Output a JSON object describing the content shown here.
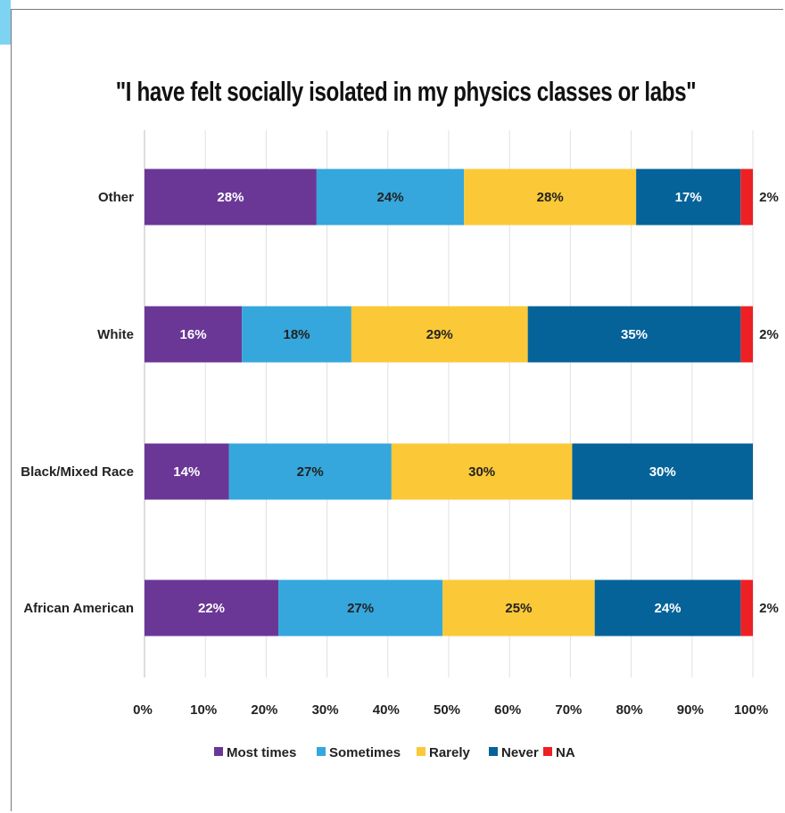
{
  "chart_data": {
    "type": "bar",
    "orientation": "horizontal",
    "stacked": true,
    "title": "\"I have felt socially isolated in my physics classes or labs\"",
    "categories": [
      "Other",
      "White",
      "Black/Mixed Race",
      "African American"
    ],
    "series": [
      {
        "name": "Most times",
        "color": "#6b3796",
        "values": [
          28,
          16,
          14,
          22
        ],
        "labels": [
          "28%",
          "16%",
          "14%",
          "22%"
        ]
      },
      {
        "name": "Sometimes",
        "color": "#35a7dc",
        "values": [
          24,
          18,
          27,
          27
        ],
        "labels": [
          "24%",
          "18%",
          "27%",
          "27%"
        ]
      },
      {
        "name": "Rarely",
        "color": "#fbc837",
        "values": [
          28,
          29,
          30,
          25
        ],
        "labels": [
          "28%",
          "29%",
          "30%",
          "25%"
        ]
      },
      {
        "name": "Never",
        "color": "#066399",
        "values": [
          17,
          35,
          30,
          24
        ],
        "labels": [
          "17%",
          "35%",
          "30%",
          "24%"
        ]
      },
      {
        "name": "NA",
        "color": "#ed2024",
        "values": [
          2,
          2,
          0,
          2
        ],
        "labels": [
          "2%",
          "2%",
          "",
          "2%"
        ]
      }
    ],
    "x_ticks": [
      "0%",
      "10%",
      "20%",
      "30%",
      "40%",
      "50%",
      "60%",
      "70%",
      "80%",
      "90%",
      "100%"
    ],
    "xlim": [
      0,
      100
    ],
    "grid": true,
    "legend_position": "bottom"
  }
}
